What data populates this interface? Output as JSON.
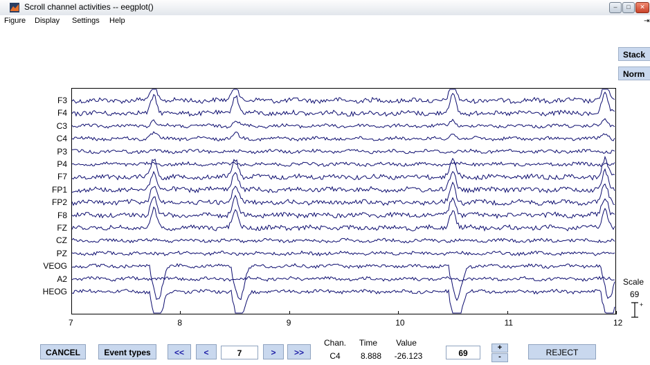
{
  "window": {
    "title": "Scroll channel activities -- eegplot()"
  },
  "menu": [
    "Figure",
    "Display",
    "Settings",
    "Help"
  ],
  "side_buttons": {
    "stack": "Stack",
    "norm": "Norm"
  },
  "channels": [
    "F3",
    "F4",
    "C3",
    "C4",
    "P3",
    "P4",
    "F7",
    "FP1",
    "FP2",
    "F8",
    "FZ",
    "CZ",
    "PZ",
    "VEOG",
    "A2",
    "HEOG"
  ],
  "x_axis": {
    "ticks": [
      "7",
      "8",
      "9",
      "10",
      "11",
      "12"
    ],
    "range": [
      7,
      12
    ]
  },
  "scale": {
    "label": "Scale",
    "value": "69"
  },
  "bottom": {
    "cancel": "CANCEL",
    "event_types": "Event types",
    "prev_fast": "<<",
    "prev": "<",
    "window_position": "7",
    "next": ">",
    "next_fast": ">>",
    "chan_header": "Chan.",
    "time_header": "Time",
    "value_header": "Value",
    "chan_value": "C4",
    "time_value": "8.888",
    "value_value": "-26.123",
    "scale_input": "69",
    "plus": "+",
    "minus": "-",
    "reject": "REJECT"
  },
  "colors": {
    "trace": "#0b0b6e",
    "button_bg": "#c9d8ee"
  }
}
